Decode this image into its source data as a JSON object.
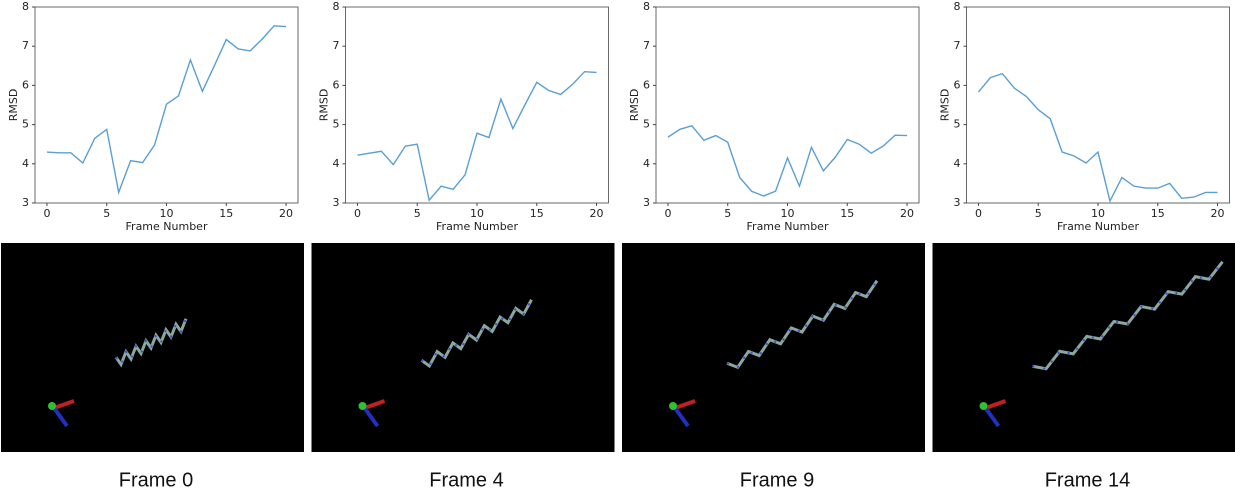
{
  "chart_data": [
    {
      "type": "line",
      "xlabel": "Frame Number",
      "ylabel": "RMSD",
      "x": [
        0,
        1,
        2,
        3,
        4,
        5,
        6,
        7,
        8,
        9,
        10,
        11,
        12,
        13,
        14,
        15,
        16,
        17,
        18,
        19,
        20
      ],
      "values": [
        4.3,
        4.28,
        4.28,
        4.02,
        4.65,
        4.88,
        3.27,
        4.08,
        4.03,
        4.48,
        5.52,
        5.73,
        6.65,
        5.85,
        6.5,
        7.17,
        6.93,
        6.88,
        7.18,
        7.52,
        7.5
      ],
      "color": "#5a9fd4",
      "xlim": [
        -1,
        21
      ],
      "xticks": [
        0,
        5,
        10,
        15,
        20
      ],
      "ylim": [
        3,
        8
      ],
      "yticks": [
        3,
        4,
        5,
        6,
        7,
        8
      ]
    },
    {
      "type": "line",
      "xlabel": "Frame Number",
      "ylabel": "RMSD",
      "x": [
        0,
        1,
        2,
        3,
        4,
        5,
        6,
        7,
        8,
        9,
        10,
        11,
        12,
        13,
        14,
        15,
        16,
        17,
        18,
        19,
        20
      ],
      "values": [
        4.22,
        4.27,
        4.32,
        3.98,
        4.45,
        4.5,
        3.07,
        3.43,
        3.35,
        3.72,
        4.78,
        4.67,
        5.65,
        4.9,
        5.5,
        6.08,
        5.87,
        5.77,
        6.03,
        6.35,
        6.33
      ],
      "color": "#5a9fd4",
      "xlim": [
        -1,
        21
      ],
      "xticks": [
        0,
        5,
        10,
        15,
        20
      ],
      "ylim": [
        3,
        8
      ],
      "yticks": [
        3,
        4,
        5,
        6,
        7,
        8
      ]
    },
    {
      "type": "line",
      "xlabel": "Frame Number",
      "ylabel": "RMSD",
      "x": [
        0,
        1,
        2,
        3,
        4,
        5,
        6,
        7,
        8,
        9,
        10,
        11,
        12,
        13,
        14,
        15,
        16,
        17,
        18,
        19,
        20
      ],
      "values": [
        4.68,
        4.88,
        4.97,
        4.6,
        4.72,
        4.55,
        3.65,
        3.3,
        3.18,
        3.3,
        4.15,
        3.43,
        4.42,
        3.82,
        4.17,
        4.62,
        4.5,
        4.27,
        4.45,
        4.73,
        4.72
      ],
      "color": "#5a9fd4",
      "xlim": [
        -1,
        21
      ],
      "xticks": [
        0,
        5,
        10,
        15,
        20
      ],
      "ylim": [
        3,
        8
      ],
      "yticks": [
        3,
        4,
        5,
        6,
        7,
        8
      ]
    },
    {
      "type": "line",
      "xlabel": "Frame Number",
      "ylabel": "RMSD",
      "x": [
        0,
        1,
        2,
        3,
        4,
        5,
        6,
        7,
        8,
        9,
        10,
        11,
        12,
        13,
        14,
        15,
        16,
        17,
        18,
        19,
        20
      ],
      "values": [
        5.83,
        6.2,
        6.3,
        5.93,
        5.72,
        5.38,
        5.15,
        4.3,
        4.2,
        4.02,
        4.3,
        3.05,
        3.65,
        3.43,
        3.38,
        3.38,
        3.5,
        3.12,
        3.15,
        3.27,
        3.27
      ],
      "color": "#5a9fd4",
      "xlim": [
        -1,
        21
      ],
      "xticks": [
        0,
        5,
        10,
        15,
        20
      ],
      "ylim": [
        3,
        8
      ],
      "yticks": [
        3,
        4,
        5,
        6,
        7,
        8
      ]
    }
  ],
  "captions": [
    "Frame 0",
    "Frame 4",
    "Frame 9",
    "Frame 14"
  ]
}
